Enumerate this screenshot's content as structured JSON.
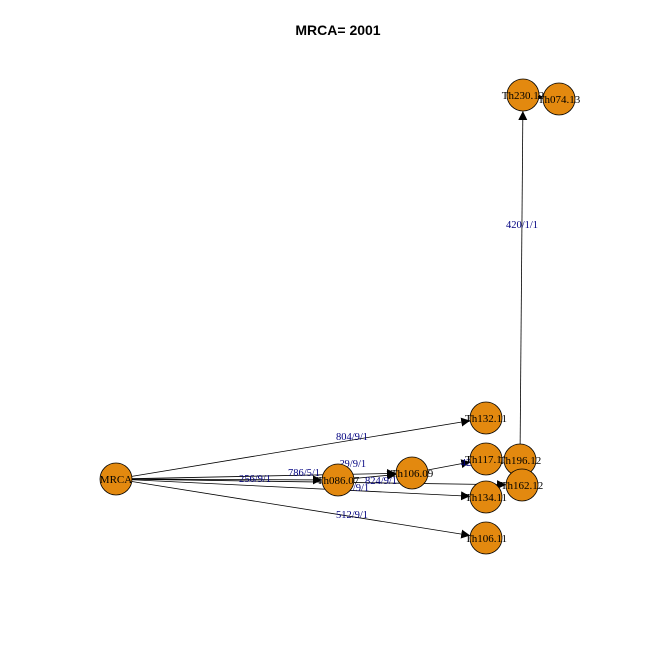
{
  "title": "MRCA= 2001",
  "colors": {
    "node_fill": "#E3890F",
    "node_stroke": "#000000",
    "edge": "#000000",
    "edge_label": "#000080"
  },
  "nodes": [
    {
      "id": "MRCA",
      "label": "MRCA"
    },
    {
      "id": "Th086",
      "label": "Th086.07"
    },
    {
      "id": "Th106a",
      "label": "Th106.09"
    },
    {
      "id": "Th132",
      "label": "Th132.11"
    },
    {
      "id": "Th117",
      "label": "Th117.11"
    },
    {
      "id": "Th196",
      "label": "Th196.12"
    },
    {
      "id": "Th162",
      "label": "Th162.12"
    },
    {
      "id": "Th134",
      "label": "Th134.11"
    },
    {
      "id": "Th106b",
      "label": "Th106.11"
    },
    {
      "id": "Th230",
      "label": "Th230.12"
    },
    {
      "id": "Th074",
      "label": "Th074.13"
    }
  ],
  "edges": [
    {
      "from": "MRCA",
      "to": "Th132",
      "label": "804/9/1"
    },
    {
      "from": "MRCA",
      "to": "Th086",
      "label": "256/9/1"
    },
    {
      "from": "MRCA",
      "to": "Th106a",
      "label": "786/5/1"
    },
    {
      "from": "MRCA",
      "to": "Th106b",
      "label": "512/9/1"
    },
    {
      "from": "MRCA",
      "to": "Th134",
      "label": "2?/9/1"
    },
    {
      "from": "MRCA",
      "to": "Th162",
      "label": "824/9/1"
    },
    {
      "from": "Th086",
      "to": "Th106a",
      "label": "?9/9/1"
    },
    {
      "from": "Th106a",
      "to": "Th117",
      "label": "42"
    },
    {
      "from": "Th196",
      "to": "Th230",
      "label": "420/1/1"
    },
    {
      "from": "Th230",
      "to": "Th074",
      "label": ""
    }
  ]
}
